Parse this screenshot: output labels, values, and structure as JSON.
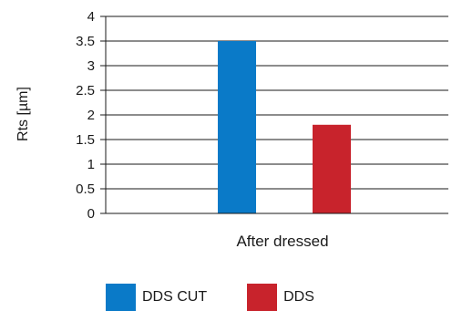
{
  "chart_data": {
    "type": "bar",
    "categories": [
      "After dressed"
    ],
    "series": [
      {
        "name": "DDS CUT",
        "values": [
          3.5
        ],
        "color": "#0a7ac8"
      },
      {
        "name": "DDS",
        "values": [
          1.8
        ],
        "color": "#c8232c"
      }
    ],
    "xlabel": "",
    "ylabel": "Rts [µm]",
    "ylim": [
      0,
      4
    ],
    "yticks": [
      0,
      0.5,
      1,
      1.5,
      2,
      2.5,
      3,
      3.5,
      4
    ],
    "ytick_labels": [
      "0",
      "0.5",
      "1",
      "1.5",
      "2",
      "2.5",
      "3",
      "3.5",
      "4"
    ],
    "grid": true,
    "legend_position": "bottom"
  }
}
